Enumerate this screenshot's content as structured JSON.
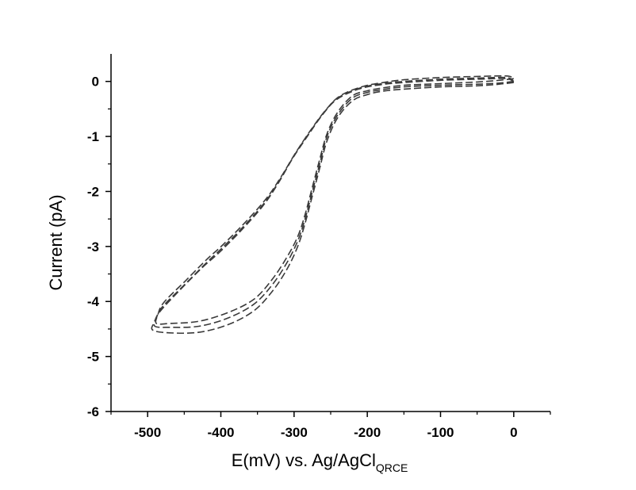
{
  "chart_data": {
    "type": "line",
    "title": "",
    "xlabel": "E(mV) vs. Ag/AgCl",
    "xlabel_subscript": "QRCE",
    "ylabel": "Current (pA)",
    "xlim": [
      -550,
      50
    ],
    "ylim": [
      -6,
      0.5
    ],
    "x_ticks": [
      -500,
      -400,
      -300,
      -200,
      -100,
      0
    ],
    "y_ticks": [
      0,
      -1,
      -2,
      -3,
      -4,
      -5,
      -6
    ],
    "x_tick_labels": [
      "-500",
      "-400",
      "-300",
      "-200",
      "-100",
      "0"
    ],
    "y_tick_labels": [
      "0",
      "-1",
      "-2",
      "-3",
      "-4",
      "-5",
      "-6"
    ],
    "grid": false,
    "line_style": "dashed",
    "line_color": "#3a3a3a",
    "series": [
      {
        "points": [
          [
            0,
            0.0
          ],
          [
            -20,
            -0.03
          ],
          [
            -50,
            -0.05
          ],
          [
            -100,
            -0.07
          ],
          [
            -150,
            -0.1
          ],
          [
            -180,
            -0.15
          ],
          [
            -200,
            -0.2
          ],
          [
            -220,
            -0.3
          ],
          [
            -240,
            -0.6
          ],
          [
            -255,
            -1.0
          ],
          [
            -265,
            -1.5
          ],
          [
            -275,
            -2.0
          ],
          [
            -285,
            -2.5
          ],
          [
            -295,
            -2.9
          ],
          [
            -310,
            -3.3
          ],
          [
            -330,
            -3.7
          ],
          [
            -355,
            -4.05
          ],
          [
            -390,
            -4.3
          ],
          [
            -430,
            -4.45
          ],
          [
            -470,
            -4.47
          ],
          [
            -490,
            -4.45
          ],
          [
            -488,
            -4.3
          ],
          [
            -480,
            -4.1
          ],
          [
            -450,
            -3.7
          ],
          [
            -420,
            -3.3
          ],
          [
            -400,
            -3.05
          ],
          [
            -370,
            -2.65
          ],
          [
            -340,
            -2.2
          ],
          [
            -320,
            -1.8
          ],
          [
            -300,
            -1.35
          ],
          [
            -280,
            -0.95
          ],
          [
            -260,
            -0.58
          ],
          [
            -240,
            -0.3
          ],
          [
            -210,
            -0.12
          ],
          [
            -180,
            -0.04
          ],
          [
            -150,
            0.0
          ],
          [
            -100,
            0.04
          ],
          [
            -50,
            0.06
          ],
          [
            -10,
            0.07
          ],
          [
            0,
            0.0
          ]
        ]
      },
      {
        "points": [
          [
            0,
            -0.02
          ],
          [
            -20,
            -0.05
          ],
          [
            -50,
            -0.08
          ],
          [
            -100,
            -0.1
          ],
          [
            -150,
            -0.14
          ],
          [
            -180,
            -0.18
          ],
          [
            -200,
            -0.24
          ],
          [
            -220,
            -0.35
          ],
          [
            -240,
            -0.65
          ],
          [
            -255,
            -1.08
          ],
          [
            -265,
            -1.58
          ],
          [
            -275,
            -2.08
          ],
          [
            -285,
            -2.58
          ],
          [
            -295,
            -3.0
          ],
          [
            -310,
            -3.42
          ],
          [
            -330,
            -3.82
          ],
          [
            -355,
            -4.17
          ],
          [
            -390,
            -4.42
          ],
          [
            -430,
            -4.56
          ],
          [
            -470,
            -4.57
          ],
          [
            -493,
            -4.52
          ],
          [
            -491,
            -4.38
          ],
          [
            -483,
            -4.18
          ],
          [
            -455,
            -3.78
          ],
          [
            -425,
            -3.38
          ],
          [
            -403,
            -3.12
          ],
          [
            -373,
            -2.72
          ],
          [
            -343,
            -2.27
          ],
          [
            -322,
            -1.86
          ],
          [
            -302,
            -1.4
          ],
          [
            -282,
            -1.0
          ],
          [
            -262,
            -0.62
          ],
          [
            -242,
            -0.33
          ],
          [
            -212,
            -0.14
          ],
          [
            -182,
            -0.06
          ],
          [
            -150,
            -0.02
          ],
          [
            -100,
            0.02
          ],
          [
            -50,
            0.04
          ],
          [
            -10,
            0.05
          ],
          [
            0,
            -0.02
          ]
        ]
      },
      {
        "points": [
          [
            0,
            0.05
          ],
          [
            -20,
            0.02
          ],
          [
            -50,
            -0.01
          ],
          [
            -100,
            -0.04
          ],
          [
            -150,
            -0.07
          ],
          [
            -180,
            -0.12
          ],
          [
            -200,
            -0.17
          ],
          [
            -220,
            -0.26
          ],
          [
            -240,
            -0.55
          ],
          [
            -255,
            -0.95
          ],
          [
            -265,
            -1.42
          ],
          [
            -275,
            -1.92
          ],
          [
            -285,
            -2.42
          ],
          [
            -295,
            -2.82
          ],
          [
            -310,
            -3.2
          ],
          [
            -330,
            -3.6
          ],
          [
            -355,
            -3.96
          ],
          [
            -390,
            -4.2
          ],
          [
            -430,
            -4.36
          ],
          [
            -470,
            -4.4
          ],
          [
            -488,
            -4.4
          ],
          [
            -486,
            -4.24
          ],
          [
            -478,
            -4.02
          ],
          [
            -448,
            -3.62
          ],
          [
            -418,
            -3.22
          ],
          [
            -398,
            -2.98
          ],
          [
            -368,
            -2.58
          ],
          [
            -338,
            -2.13
          ],
          [
            -318,
            -1.74
          ],
          [
            -298,
            -1.3
          ],
          [
            -278,
            -0.9
          ],
          [
            -258,
            -0.54
          ],
          [
            -238,
            -0.27
          ],
          [
            -208,
            -0.1
          ],
          [
            -178,
            -0.02
          ],
          [
            -150,
            0.03
          ],
          [
            -100,
            0.07
          ],
          [
            -50,
            0.09
          ],
          [
            -10,
            0.1
          ],
          [
            0,
            0.05
          ]
        ]
      }
    ]
  }
}
